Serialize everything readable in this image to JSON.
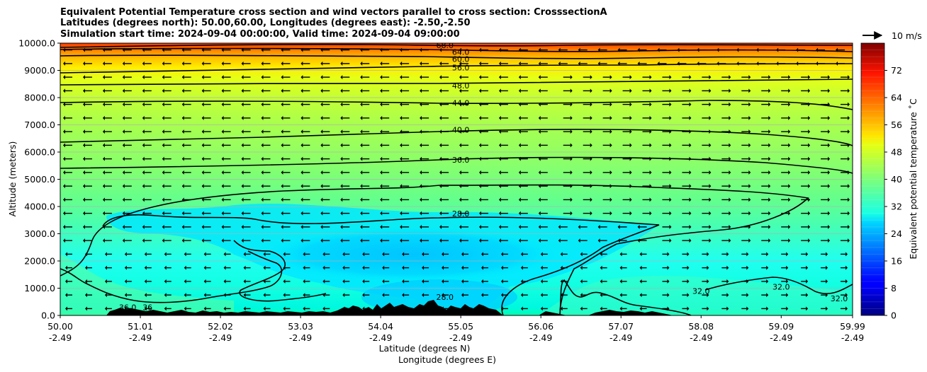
{
  "title_lines": [
    "Equivalent Potential Temperature cross section and wind vectors parallel to cross section: CrosssectionA",
    "Latitudes (degrees north): 50.00,60.00, Longitudes (degrees east): -2.50,-2.50",
    "Simulation start time: 2024-09-04 00:00:00, Valid time: 2024-09-04 09:00:00"
  ],
  "quiver_key_label": "10 m/s",
  "colorbar": {
    "label": "Equivalent potential temperature ˚C",
    "ticks": [
      "0",
      "8",
      "16",
      "24",
      "32",
      "40",
      "48",
      "56",
      "64",
      "72"
    ],
    "range": [
      0,
      80
    ],
    "colormap": "jet"
  },
  "chart_data": {
    "type": "heatmap",
    "ylabel": "Altitude (meters)",
    "xlabel_line1": "Latitude (degrees N)",
    "xlabel_line2": "Longitude (degrees E)",
    "ylim": [
      0,
      10000
    ],
    "xlim": [
      50.0,
      59.99
    ],
    "y_ticks": [
      "0.0",
      "1000.0",
      "2000.0",
      "3000.0",
      "4000.0",
      "5000.0",
      "6000.0",
      "7000.0",
      "8000.0",
      "9000.0",
      "10000.0"
    ],
    "x_ticks": [
      {
        "lat": "50.00",
        "lon": "-2.49"
      },
      {
        "lat": "51.01",
        "lon": "-2.49"
      },
      {
        "lat": "52.02",
        "lon": "-2.49"
      },
      {
        "lat": "53.03",
        "lon": "-2.49"
      },
      {
        "lat": "54.04",
        "lon": "-2.49"
      },
      {
        "lat": "55.05",
        "lon": "-2.49"
      },
      {
        "lat": "56.06",
        "lon": "-2.49"
      },
      {
        "lat": "57.07",
        "lon": "-2.49"
      },
      {
        "lat": "58.08",
        "lon": "-2.49"
      },
      {
        "lat": "59.09",
        "lon": "-2.49"
      },
      {
        "lat": "59.99",
        "lon": "-2.49"
      }
    ],
    "contour_labels": [
      {
        "text": "68.0",
        "lat": 54.85,
        "alt": 9920
      },
      {
        "text": "64.0",
        "lat": 55.05,
        "alt": 9680
      },
      {
        "text": "60.0",
        "lat": 55.05,
        "alt": 9420
      },
      {
        "text": "56.0",
        "lat": 55.05,
        "alt": 9100
      },
      {
        "text": "48.0",
        "lat": 55.05,
        "alt": 8440
      },
      {
        "text": "44.0",
        "lat": 55.05,
        "alt": 7800
      },
      {
        "text": "40.0",
        "lat": 55.05,
        "alt": 6820
      },
      {
        "text": "36.0",
        "lat": 55.05,
        "alt": 5720
      },
      {
        "text": "28.0",
        "lat": 55.05,
        "alt": 3740
      },
      {
        "text": "28.0",
        "lat": 54.85,
        "alt": 680
      },
      {
        "text": "32.0",
        "lat": 58.08,
        "alt": 900
      },
      {
        "text": "32.0",
        "lat": 59.09,
        "alt": 1050
      },
      {
        "text": "32.0",
        "lat": 59.82,
        "alt": 620
      },
      {
        "text": "36.0",
        "lat": 50.85,
        "alt": 300
      },
      {
        "text": "36",
        "lat": 51.1,
        "alt": 300
      }
    ]
  }
}
